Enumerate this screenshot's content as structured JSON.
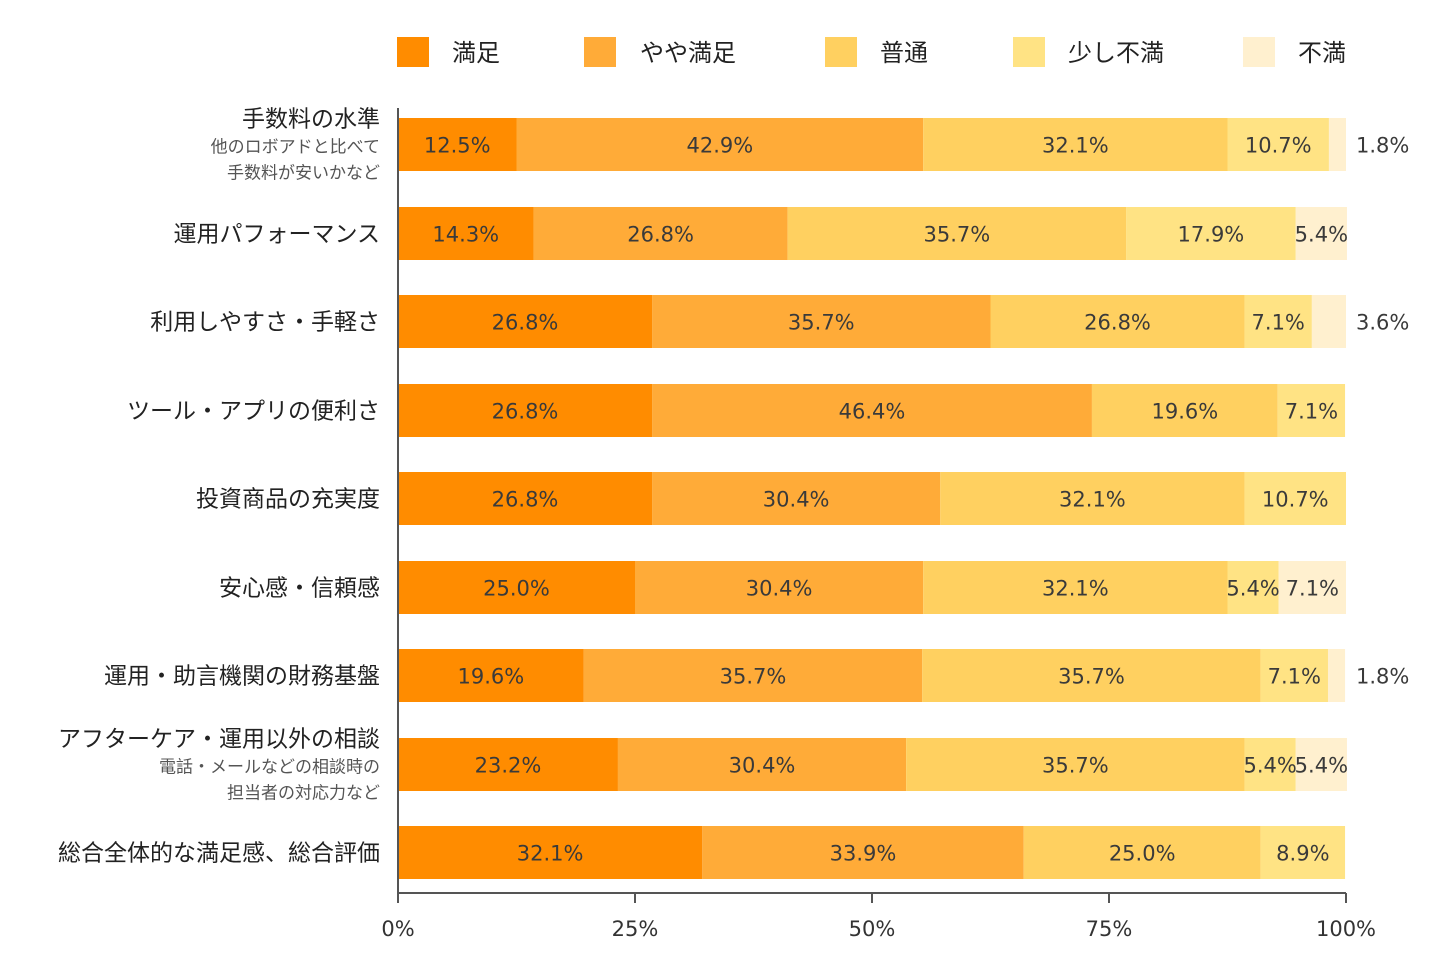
{
  "chart_data": {
    "type": "bar",
    "orientation": "horizontal",
    "stacked": true,
    "legend_position": "top",
    "xlim": [
      0,
      100
    ],
    "x_ticks": [
      "0%",
      "25%",
      "50%",
      "75%",
      "100%"
    ],
    "series": [
      {
        "name": "満足",
        "color": "#ff8c00",
        "values": [
          12.5,
          14.3,
          26.8,
          26.8,
          26.8,
          25.0,
          19.6,
          23.2,
          32.1
        ],
        "labels": [
          "12.5%",
          "14.3%",
          "26.8%",
          "26.8%",
          "26.8%",
          "25.0%",
          "19.6%",
          "23.2%",
          "32.1%"
        ]
      },
      {
        "name": "やや満足",
        "color": "#ffab38",
        "values": [
          42.9,
          26.8,
          35.7,
          46.4,
          30.4,
          30.4,
          35.7,
          30.4,
          33.9
        ],
        "labels": [
          "42.9%",
          "26.8%",
          "35.7%",
          "46.4%",
          "30.4%",
          "30.4%",
          "35.7%",
          "30.4%",
          "33.9%"
        ]
      },
      {
        "name": "普通",
        "color": "#ffd060",
        "values": [
          32.1,
          35.7,
          26.8,
          19.6,
          32.1,
          32.1,
          35.7,
          35.7,
          25.0
        ],
        "labels": [
          "32.1%",
          "35.7%",
          "26.8%",
          "19.6%",
          "32.1%",
          "32.1%",
          "35.7%",
          "35.7%",
          "25.0%"
        ]
      },
      {
        "name": "少し不満",
        "color": "#ffe384",
        "values": [
          10.7,
          17.9,
          7.1,
          7.1,
          10.7,
          5.4,
          7.1,
          5.4,
          8.9
        ],
        "labels": [
          "10.7%",
          "17.9%",
          "7.1%",
          "7.1%",
          "10.7%",
          "5.4%",
          "7.1%",
          "5.4%",
          "8.9%"
        ]
      },
      {
        "name": "不満",
        "color": "#fff0cf",
        "values": [
          1.8,
          5.4,
          3.6,
          0,
          0,
          7.1,
          1.8,
          5.4,
          0
        ],
        "labels": [
          "1.8%",
          "5.4%",
          "3.6%",
          "",
          "",
          "7.1%",
          "1.8%",
          "5.4%",
          ""
        ]
      }
    ],
    "categories": [
      {
        "main": "手数料の水準",
        "sub": [
          "他のロボアドと比べて",
          "手数料が安いかなど"
        ]
      },
      {
        "main": "運用パフォーマンス",
        "sub": []
      },
      {
        "main": "利用しやすさ・手軽さ",
        "sub": []
      },
      {
        "main": "ツール・アプリの便利さ",
        "sub": []
      },
      {
        "main": "投資商品の充実度",
        "sub": []
      },
      {
        "main": "安心感・信頼感",
        "sub": []
      },
      {
        "main": "運用・助言機関の財務基盤",
        "sub": []
      },
      {
        "main": "アフターケア・運用以外の相談",
        "sub": [
          "電話・メールなどの相談時の",
          "担当者の対応力など"
        ]
      },
      {
        "main": "総合全体的な満足感、総合評価",
        "sub": []
      }
    ]
  }
}
